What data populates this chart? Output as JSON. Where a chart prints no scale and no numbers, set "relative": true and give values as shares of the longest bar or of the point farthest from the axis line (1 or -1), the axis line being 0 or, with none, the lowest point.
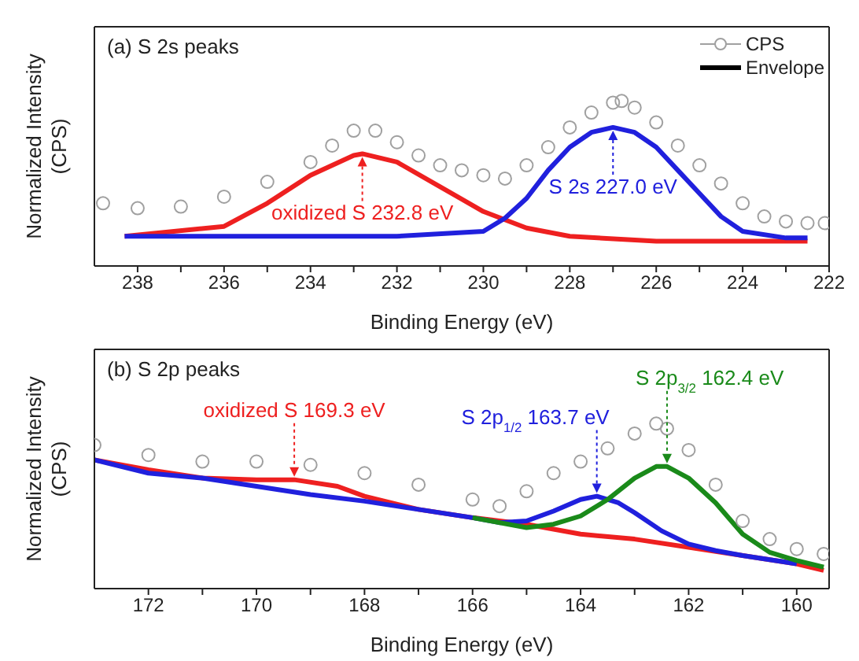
{
  "chart_data": [
    {
      "type": "line",
      "title": "(a) S 2s peaks",
      "xlabel": "Binding Energy (eV)",
      "ylabel": "Normalized Intensity (CPS)",
      "relative": true,
      "marker": "none",
      "legend": "top right",
      "tick_labels": "x",
      "grid": false,
      "xlim": [
        239,
        222
      ],
      "xticks": [
        238,
        {
          "value": 237,
          "label": null
        },
        236,
        {
          "value": 235,
          "label": null
        },
        234,
        {
          "value": 233,
          "label": null
        },
        232,
        {
          "value": 231,
          "label": null
        },
        230,
        {
          "value": 229,
          "label": null
        },
        228,
        {
          "value": 227,
          "label": null
        },
        226,
        {
          "value": 225,
          "label": null
        },
        224,
        {
          "value": 223,
          "label": null
        },
        222
      ],
      "series": [
        {
          "name": "CPS",
          "type": "scatter",
          "marker": "circle",
          "color": "#a0a0a0",
          "x": [
            238.8,
            238,
            237,
            236,
            235,
            234,
            233.5,
            233,
            232.5,
            232,
            231.5,
            231,
            230.5,
            230,
            229.5,
            229,
            228.5,
            228,
            227.5,
            227,
            226.8,
            226.5,
            226,
            225.5,
            225,
            224.5,
            224,
            223.5,
            223,
            222.5,
            222.1
          ],
          "values": [
            0.38,
            0.35,
            0.36,
            0.42,
            0.51,
            0.63,
            0.73,
            0.82,
            0.82,
            0.75,
            0.67,
            0.61,
            0.58,
            0.55,
            0.53,
            0.61,
            0.72,
            0.84,
            0.93,
            0.99,
            1.0,
            0.96,
            0.87,
            0.73,
            0.61,
            0.5,
            0.38,
            0.3,
            0.27,
            0.26,
            0.26
          ]
        },
        {
          "name": "Envelope",
          "color": "#000000"
        },
        {
          "color": "#ee2020",
          "x": [
            238.3,
            236,
            235,
            234,
            233,
            232.8,
            232,
            231,
            230,
            229,
            228,
            226,
            224,
            222.5
          ],
          "values": [
            0.18,
            0.24,
            0.38,
            0.55,
            0.67,
            0.68,
            0.63,
            0.48,
            0.33,
            0.23,
            0.18,
            0.15,
            0.15,
            0.15
          ]
        },
        {
          "color": "#2020dd",
          "x": [
            238.3,
            232,
            230,
            229.5,
            229,
            228.5,
            228,
            227.5,
            227,
            226.5,
            226,
            225.5,
            225,
            224.5,
            224,
            223,
            222.5
          ],
          "values": [
            0.18,
            0.18,
            0.21,
            0.29,
            0.41,
            0.58,
            0.72,
            0.81,
            0.84,
            0.81,
            0.72,
            0.58,
            0.44,
            0.3,
            0.21,
            0.17,
            0.17
          ]
        }
      ],
      "annotations": [
        {
          "text": "oxidized S 232.8 eV",
          "x": 232.8,
          "y": 0.68
        },
        {
          "text": "S 2s 227.0 eV",
          "x": 227.0,
          "y": 0.84
        }
      ]
    },
    {
      "type": "line",
      "title": "(b) S 2p peaks",
      "xlabel": "Binding Energy (eV)",
      "ylabel": "Normalized Intensity (CPS)",
      "relative": true,
      "marker": "none",
      "tick_labels": "x",
      "grid": false,
      "xlim": [
        173,
        159.4
      ],
      "xticks": [
        172,
        {
          "value": 171,
          "label": null
        },
        170,
        {
          "value": 169,
          "label": null
        },
        168,
        {
          "value": 167,
          "label": null
        },
        166,
        {
          "value": 165,
          "label": null
        },
        164,
        {
          "value": 163,
          "label": null
        },
        162,
        {
          "value": 161,
          "label": null
        },
        160
      ],
      "series": [
        {
          "type": "scatter",
          "marker": "circle",
          "color": "#a0a0a0",
          "x": [
            173,
            172,
            171,
            170,
            169,
            168,
            167,
            166,
            165.5,
            165,
            164.5,
            164,
            163.5,
            163,
            162.6,
            162.4,
            162,
            161.5,
            161,
            160.5,
            160,
            159.5
          ],
          "values": [
            0.87,
            0.81,
            0.77,
            0.77,
            0.75,
            0.7,
            0.63,
            0.54,
            0.5,
            0.59,
            0.7,
            0.77,
            0.85,
            0.94,
            1.0,
            0.97,
            0.84,
            0.63,
            0.41,
            0.3,
            0.24,
            0.21
          ]
        },
        {
          "color": "#ee2020",
          "x": [
            173,
            172,
            171,
            170,
            169.3,
            168.5,
            168,
            167,
            166,
            165,
            164,
            163,
            162,
            160,
            159.5
          ],
          "values": [
            0.78,
            0.72,
            0.67,
            0.66,
            0.66,
            0.62,
            0.56,
            0.48,
            0.43,
            0.39,
            0.33,
            0.3,
            0.25,
            0.15,
            0.11
          ]
        },
        {
          "color": "#2020dd",
          "x": [
            173,
            172,
            171,
            170,
            169,
            168,
            167,
            166,
            165.5,
            165,
            164.5,
            164,
            163.7,
            163.3,
            163,
            162.5,
            162,
            161.5,
            161,
            160
          ],
          "values": [
            0.78,
            0.7,
            0.67,
            0.62,
            0.57,
            0.53,
            0.48,
            0.43,
            0.4,
            0.41,
            0.47,
            0.54,
            0.56,
            0.52,
            0.46,
            0.35,
            0.27,
            0.23,
            0.2,
            0.15
          ]
        },
        {
          "color": "#1a8a1a",
          "x": [
            166,
            165,
            164.5,
            164,
            163.5,
            163,
            162.6,
            162.4,
            162,
            161.5,
            161,
            160.5,
            160,
            159.5
          ],
          "values": [
            0.43,
            0.37,
            0.39,
            0.44,
            0.54,
            0.67,
            0.74,
            0.74,
            0.67,
            0.52,
            0.33,
            0.22,
            0.17,
            0.13
          ]
        }
      ],
      "annotations": [
        {
          "text": "oxidized S 169.3 eV",
          "x": 169.3,
          "y": 0.66
        },
        {
          "text": "S 2p$_{1/2}$ 163.7 eV",
          "x": 163.7,
          "y": 0.56
        },
        {
          "text": "S 2p$_{3/2}$ 162.4 eV",
          "x": 162.4,
          "y": 0.74
        }
      ]
    }
  ]
}
